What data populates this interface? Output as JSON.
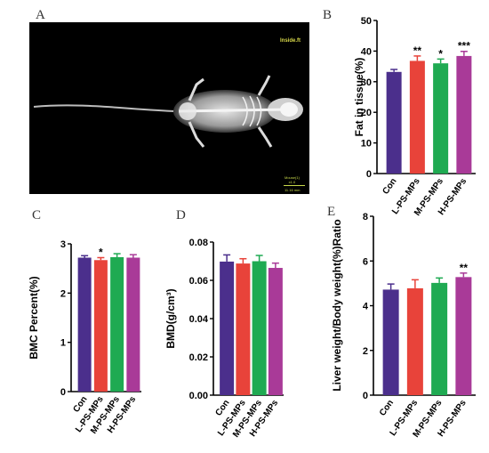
{
  "panels": {
    "a": "A",
    "b": "B",
    "c": "C",
    "d": "D",
    "e": "E"
  },
  "xray": {
    "label": "Inside.ft",
    "scale_line1": "Mouse(1)",
    "scale_line2": "x1.0",
    "scale_line3": "11.16 mm"
  },
  "colors": {
    "Con": "#4b2f8c",
    "L-PS-MPs": "#e8433a",
    "M-PS-MPs": "#1faa52",
    "H-PS-MPs": "#a93a98"
  },
  "chart_data": [
    {
      "id": "B",
      "type": "bar",
      "categories": [
        "Con",
        "L-PS-MPs",
        "M-PS-MPs",
        "H-PS-MPs"
      ],
      "values": [
        33.2,
        36.8,
        36.0,
        38.4
      ],
      "errors": [
        0.8,
        1.6,
        1.4,
        1.5
      ],
      "significance": [
        "",
        "**",
        "*",
        "***"
      ],
      "ylabel": "Fat in tissue(%)",
      "ylim": [
        0,
        50
      ],
      "yticks": [
        "0",
        "10",
        "20",
        "30",
        "40",
        "50"
      ]
    },
    {
      "id": "C",
      "type": "bar",
      "categories": [
        "Con",
        "L-PS-MPs",
        "M-PS-MPs",
        "H-PS-MPs"
      ],
      "values": [
        2.72,
        2.67,
        2.73,
        2.72
      ],
      "errors": [
        0.04,
        0.05,
        0.07,
        0.06
      ],
      "significance": [
        "",
        "*",
        "",
        ""
      ],
      "ylabel": "BMC Percent(%)",
      "ylim": [
        0,
        3
      ],
      "yticks": [
        "0",
        "1",
        "2",
        "3"
      ]
    },
    {
      "id": "D",
      "type": "bar",
      "categories": [
        "Con",
        "L-PS-MPs",
        "M-PS-MPs",
        "H-PS-MPs"
      ],
      "values": [
        0.0698,
        0.0688,
        0.07,
        0.0665
      ],
      "errors": [
        0.0035,
        0.0025,
        0.003,
        0.0025
      ],
      "significance": [
        "",
        "",
        "",
        ""
      ],
      "ylabel": "BMD(g/cm³)",
      "ylim": [
        0,
        0.08
      ],
      "yticks": [
        "0.00",
        "0.02",
        "0.04",
        "0.06",
        "0.08"
      ]
    },
    {
      "id": "E",
      "type": "bar",
      "categories": [
        "Con",
        "L-PS-MPs",
        "M-PS-MPs",
        "H-PS-MPs"
      ],
      "values": [
        4.72,
        4.78,
        5.02,
        5.28
      ],
      "errors": [
        0.25,
        0.38,
        0.22,
        0.18
      ],
      "significance": [
        "",
        "",
        "",
        "**"
      ],
      "ylabel": "Liver weight/Body weight(%)Ratio",
      "ylim": [
        0,
        8
      ],
      "yticks": [
        "0",
        "2",
        "4",
        "6",
        "8"
      ]
    }
  ]
}
